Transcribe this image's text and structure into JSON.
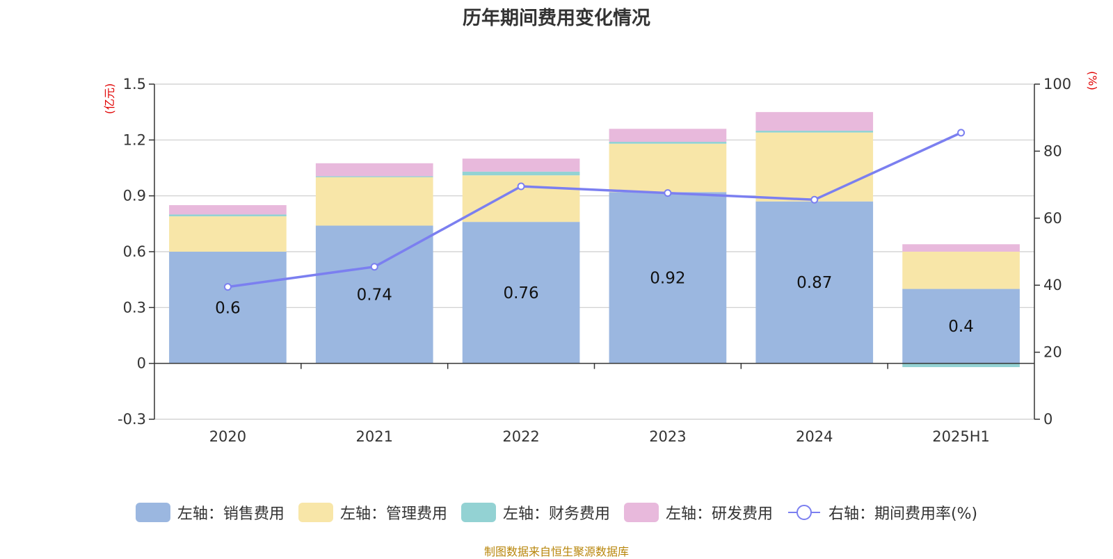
{
  "chart_data": {
    "type": "bar",
    "title": "历年期间费用变化情况",
    "categories": [
      "2020",
      "2021",
      "2022",
      "2023",
      "2024",
      "2025H1"
    ],
    "series": [
      {
        "name": "左轴：销售费用",
        "axis": "left",
        "kind": "stacked-bar",
        "color": "#9bb7e0",
        "values": [
          0.6,
          0.74,
          0.76,
          0.92,
          0.87,
          0.4
        ]
      },
      {
        "name": "左轴：管理费用",
        "axis": "left",
        "kind": "stacked-bar",
        "color": "#f8e6a8",
        "values": [
          0.19,
          0.26,
          0.25,
          0.26,
          0.37,
          0.2
        ]
      },
      {
        "name": "左轴：财务费用",
        "axis": "left",
        "kind": "stacked-bar",
        "color": "#93d2d3",
        "values": [
          0.01,
          0.005,
          0.02,
          0.01,
          0.01,
          -0.02
        ]
      },
      {
        "name": "左轴：研发费用",
        "axis": "left",
        "kind": "stacked-bar",
        "color": "#e8b9dc",
        "values": [
          0.05,
          0.07,
          0.07,
          0.07,
          0.1,
          0.04
        ]
      },
      {
        "name": "右轴：期间费用率(%)",
        "axis": "right",
        "kind": "line",
        "color": "#7b7ff0",
        "values": [
          39.5,
          45.5,
          69.5,
          67.5,
          65.5,
          85.5
        ]
      }
    ],
    "data_labels": [
      "0.6",
      "0.74",
      "0.76",
      "0.92",
      "0.87",
      "0.4"
    ],
    "left_axis": {
      "unit": "(亿元)",
      "min": -0.3,
      "max": 1.5,
      "ticks": [
        -0.3,
        0,
        0.3,
        0.6,
        0.9,
        1.2,
        1.5
      ],
      "tick_labels": [
        "-0.3",
        "0",
        "0.3",
        "0.6",
        "0.9",
        "1.2",
        "1.5"
      ]
    },
    "right_axis": {
      "unit": "(%)",
      "min": 0,
      "max": 100,
      "ticks": [
        0,
        20,
        40,
        60,
        80,
        100
      ],
      "tick_labels": [
        "0",
        "20",
        "40",
        "60",
        "80",
        "100"
      ]
    },
    "grid": true,
    "legend_position": "bottom"
  },
  "source_note": "制图数据来自恒生聚源数据库"
}
